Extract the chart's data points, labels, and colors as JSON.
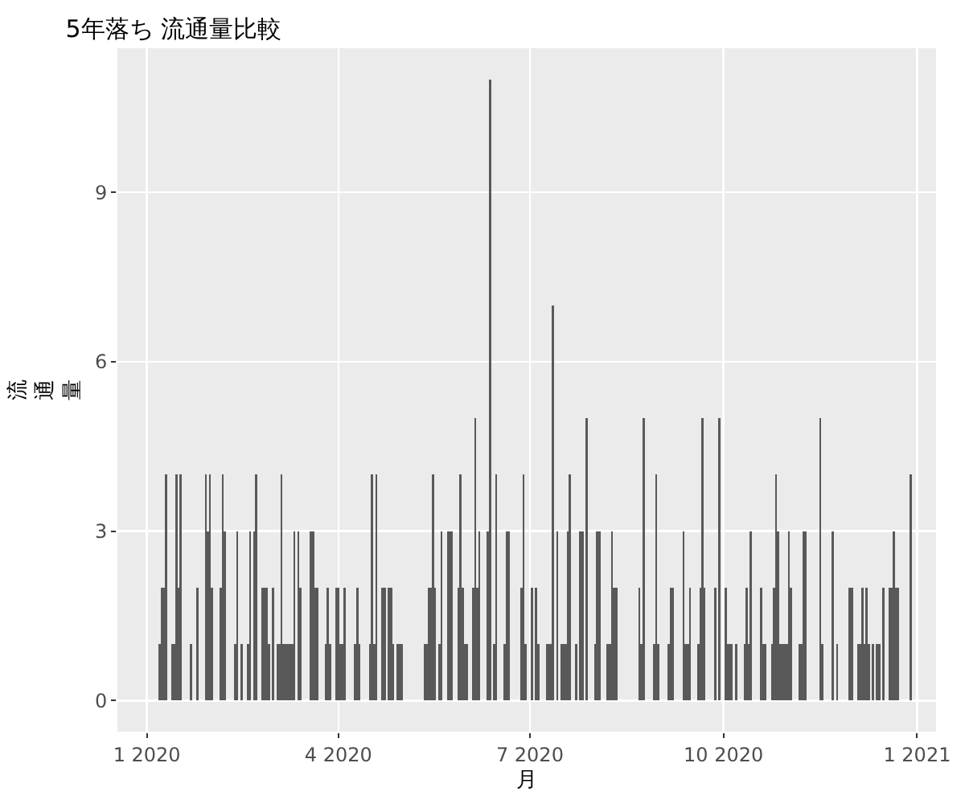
{
  "chart_data": {
    "type": "bar",
    "title": "5年落ち 流通量比較",
    "xlabel": "月",
    "ylabel": "流通量",
    "color": "#595959",
    "x": [
      "2020-01-07",
      "2020-01-08",
      "2020-01-09",
      "2020-01-10",
      "2020-01-13",
      "2020-01-14",
      "2020-01-15",
      "2020-01-16",
      "2020-01-17",
      "2020-01-22",
      "2020-01-25",
      "2020-01-29",
      "2020-01-30",
      "2020-01-31",
      "2020-02-01",
      "2020-02-05",
      "2020-02-06",
      "2020-02-07",
      "2020-02-12",
      "2020-02-13",
      "2020-02-15",
      "2020-02-18",
      "2020-02-19",
      "2020-02-21",
      "2020-02-22",
      "2020-02-25",
      "2020-02-26",
      "2020-02-27",
      "2020-02-28",
      "2020-03-01",
      "2020-03-03",
      "2020-03-04",
      "2020-03-05",
      "2020-03-06",
      "2020-03-07",
      "2020-03-08",
      "2020-03-09",
      "2020-03-10",
      "2020-03-11",
      "2020-03-13",
      "2020-03-14",
      "2020-03-19",
      "2020-03-20",
      "2020-03-21",
      "2020-03-22",
      "2020-03-26",
      "2020-03-27",
      "2020-03-28",
      "2020-03-31",
      "2020-04-01",
      "2020-04-02",
      "2020-04-03",
      "2020-04-04",
      "2020-04-09",
      "2020-04-10",
      "2020-04-11",
      "2020-04-16",
      "2020-04-17",
      "2020-04-18",
      "2020-04-19",
      "2020-04-22",
      "2020-04-23",
      "2020-04-25",
      "2020-04-26",
      "2020-04-27",
      "2020-04-29",
      "2020-04-30",
      "2020-05-01",
      "2020-05-12",
      "2020-05-13",
      "2020-05-14",
      "2020-05-15",
      "2020-05-16",
      "2020-05-17",
      "2020-05-19",
      "2020-05-20",
      "2020-05-23",
      "2020-05-24",
      "2020-05-25",
      "2020-05-28",
      "2020-05-29",
      "2020-05-30",
      "2020-05-31",
      "2020-06-01",
      "2020-06-04",
      "2020-06-05",
      "2020-06-06",
      "2020-06-07",
      "2020-06-11",
      "2020-06-12",
      "2020-06-14",
      "2020-06-15",
      "2020-06-19",
      "2020-06-20",
      "2020-06-21",
      "2020-06-27",
      "2020-06-28",
      "2020-06-29",
      "2020-07-02",
      "2020-07-04",
      "2020-07-05",
      "2020-07-09",
      "2020-07-10",
      "2020-07-11",
      "2020-07-12",
      "2020-07-14",
      "2020-07-16",
      "2020-07-17",
      "2020-07-18",
      "2020-07-19",
      "2020-07-20",
      "2020-07-23",
      "2020-07-25",
      "2020-07-26",
      "2020-07-28",
      "2020-08-01",
      "2020-08-02",
      "2020-08-03",
      "2020-08-07",
      "2020-08-08",
      "2020-08-09",
      "2020-08-10",
      "2020-08-11",
      "2020-08-22",
      "2020-08-23",
      "2020-08-24",
      "2020-08-29",
      "2020-08-30",
      "2020-08-31",
      "2020-09-05",
      "2020-09-06",
      "2020-09-07",
      "2020-09-12",
      "2020-09-13",
      "2020-09-14",
      "2020-09-15",
      "2020-09-19",
      "2020-09-20",
      "2020-09-21",
      "2020-09-22",
      "2020-09-27",
      "2020-09-29",
      "2020-10-02",
      "2020-10-03",
      "2020-10-04",
      "2020-10-05",
      "2020-10-07",
      "2020-10-11",
      "2020-10-12",
      "2020-10-13",
      "2020-10-14",
      "2020-10-19",
      "2020-10-20",
      "2020-10-21",
      "2020-10-24",
      "2020-10-25",
      "2020-10-26",
      "2020-10-27",
      "2020-10-28",
      "2020-10-29",
      "2020-10-30",
      "2020-10-31",
      "2020-11-01",
      "2020-11-02",
      "2020-11-06",
      "2020-11-07",
      "2020-11-08",
      "2020-11-09",
      "2020-11-16",
      "2020-11-17",
      "2020-11-22",
      "2020-11-24",
      "2020-11-30",
      "2020-12-01",
      "2020-12-04",
      "2020-12-05",
      "2020-12-06",
      "2020-12-07",
      "2020-12-08",
      "2020-12-09",
      "2020-12-11",
      "2020-12-13",
      "2020-12-14",
      "2020-12-16",
      "2020-12-19",
      "2020-12-20",
      "2020-12-21",
      "2020-12-22",
      "2020-12-23",
      "2020-12-29"
    ],
    "values": [
      1,
      2,
      2,
      4,
      1,
      1,
      4,
      2,
      4,
      1,
      2,
      4,
      3,
      4,
      2,
      2,
      4,
      3,
      1,
      3,
      1,
      1,
      3,
      3,
      4,
      2,
      2,
      2,
      1,
      2,
      1,
      1,
      4,
      1,
      1,
      1,
      1,
      1,
      3,
      3,
      2,
      3,
      3,
      2,
      2,
      1,
      2,
      1,
      2,
      2,
      1,
      1,
      2,
      1,
      2,
      1,
      1,
      4,
      1,
      4,
      2,
      2,
      2,
      2,
      1,
      1,
      1,
      1,
      1,
      1,
      2,
      2,
      4,
      2,
      1,
      3,
      3,
      3,
      3,
      2,
      4,
      2,
      1,
      1,
      2,
      5,
      2,
      3,
      3,
      11,
      1,
      4,
      1,
      3,
      3,
      2,
      4,
      1,
      2,
      2,
      1,
      1,
      1,
      1,
      7,
      3,
      1,
      1,
      1,
      3,
      4,
      1,
      3,
      3,
      5,
      1,
      3,
      3,
      1,
      1,
      3,
      2,
      2,
      2,
      1,
      5,
      1,
      4,
      1,
      1,
      2,
      2,
      3,
      1,
      1,
      2,
      1,
      2,
      5,
      2,
      2,
      5,
      2,
      1,
      1,
      1,
      1,
      1,
      2,
      1,
      3,
      2,
      1,
      1,
      1,
      2,
      4,
      3,
      1,
      1,
      1,
      1,
      3,
      2,
      1,
      1,
      3,
      3,
      5,
      1,
      3,
      1,
      2,
      2,
      1,
      1,
      2,
      1,
      2,
      1,
      1,
      1,
      1,
      2,
      2,
      2,
      3,
      2,
      2,
      4
    ],
    "xlim": [
      "2019-12-18",
      "2021-01-10"
    ],
    "xticks": [
      {
        "value": "2020-01-01",
        "label": "1 2020"
      },
      {
        "value": "2020-04-01",
        "label": "4 2020"
      },
      {
        "value": "2020-07-01",
        "label": "7 2020"
      },
      {
        "value": "2020-10-01",
        "label": "10 2020"
      },
      {
        "value": "2021-01-01",
        "label": "1 2021"
      }
    ],
    "ylim": [
      -0.55,
      11.55
    ],
    "yticks": [
      0,
      3,
      6,
      9
    ],
    "grid": true
  }
}
